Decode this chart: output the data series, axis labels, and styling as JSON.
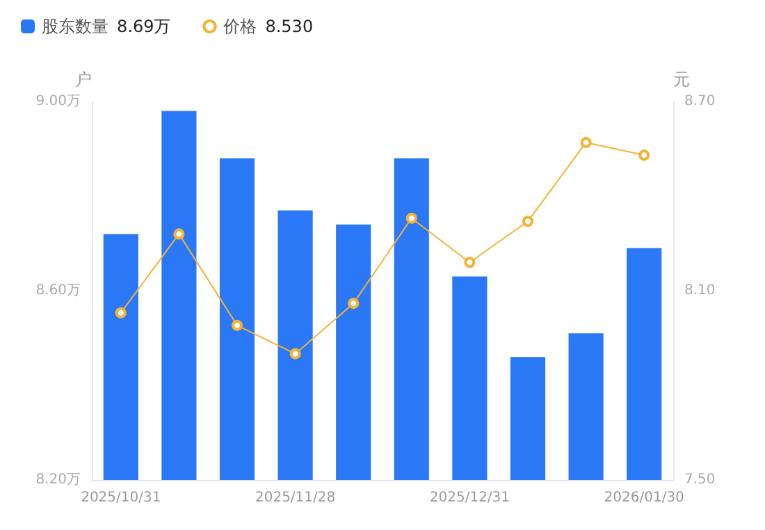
{
  "chart_data": {
    "type": "bar",
    "categories": [
      "2025/10/31",
      null,
      null,
      "2025/11/28",
      null,
      null,
      "2025/12/31",
      null,
      null,
      "2026/01/30"
    ],
    "ylabel": "户",
    "y2label": "元",
    "series": [
      {
        "name": "股东数量",
        "color": "#2a78f5",
        "values": [
          8.72,
          8.98,
          8.88,
          8.77,
          8.74,
          8.88,
          8.63,
          8.46,
          8.51,
          8.69
        ]
      },
      {
        "name": "价格",
        "type": "line",
        "axis": "y2",
        "color": "#f5b335",
        "values": [
          8.03,
          8.28,
          7.99,
          7.9,
          8.06,
          8.33,
          8.19,
          8.32,
          8.57,
          8.53
        ]
      }
    ],
    "annotations": [
      "8.69万",
      "8.530"
    ],
    "ylim": [
      8.2,
      9.0
    ],
    "yticks": [
      {
        "value": 8.2,
        "label": "8.20万"
      },
      {
        "value": 8.6,
        "label": "8.60万"
      },
      {
        "value": 9.0,
        "label": "9.00万"
      }
    ],
    "y2lim": [
      7.5,
      8.7
    ],
    "y2ticks": [
      {
        "value": 7.5,
        "label": "7.50"
      },
      {
        "value": 8.1,
        "label": "8.10"
      },
      {
        "value": 8.7,
        "label": "8.70"
      }
    ],
    "legend": "top left",
    "marker": "circle",
    "grid": false
  }
}
